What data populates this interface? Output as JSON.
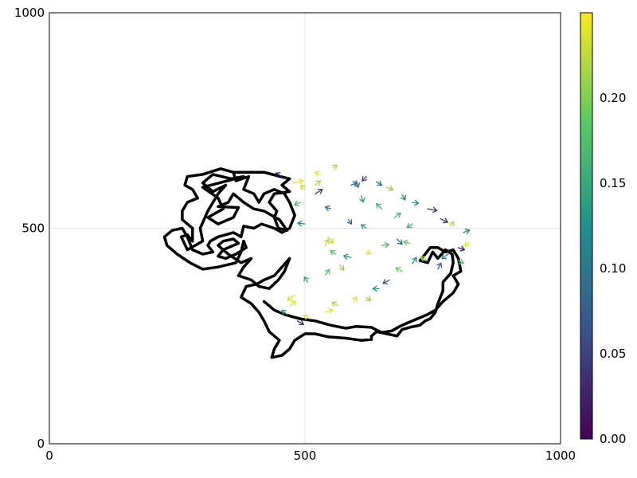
{
  "chart_data": {
    "type": "quiver",
    "title": "",
    "xlabel": "",
    "ylabel": "",
    "xlim": [
      0,
      1000
    ],
    "ylim": [
      0,
      1000
    ],
    "x_ticks": [
      "0",
      "500",
      "1000"
    ],
    "y_ticks": [
      "0",
      "500",
      "1000"
    ],
    "grid": true,
    "colorbar": {
      "range": [
        0,
        0.25
      ],
      "ticks": [
        "0.00",
        "0.05",
        "0.10",
        "0.15",
        "0.20"
      ],
      "tick_values": [
        0,
        0.05,
        0.1,
        0.15,
        0.2
      ],
      "colormap": "viridis",
      "colors": [
        "#440154",
        "#3b528b",
        "#21918c",
        "#5ec962",
        "#fde725"
      ]
    },
    "trajectory_color": "#000000",
    "trajectory": [
      [
        360,
        630
      ],
      [
        420,
        630
      ],
      [
        445,
        622
      ],
      [
        470,
        615
      ],
      [
        455,
        600
      ],
      [
        470,
        585
      ],
      [
        440,
        580
      ],
      [
        430,
        560
      ],
      [
        445,
        540
      ],
      [
        440,
        525
      ],
      [
        448,
        500
      ],
      [
        465,
        495
      ],
      [
        450,
        520
      ],
      [
        420,
        540
      ],
      [
        400,
        545
      ],
      [
        380,
        560
      ],
      [
        360,
        580
      ],
      [
        350,
        560
      ],
      [
        330,
        550
      ],
      [
        370,
        548
      ],
      [
        360,
        525
      ],
      [
        330,
        510
      ],
      [
        310,
        525
      ],
      [
        340,
        545
      ],
      [
        330,
        570
      ],
      [
        300,
        595
      ],
      [
        380,
        620
      ],
      [
        355,
        615
      ],
      [
        320,
        625
      ],
      [
        300,
        605
      ],
      [
        320,
        585
      ],
      [
        345,
        600
      ],
      [
        330,
        580
      ],
      [
        310,
        540
      ],
      [
        295,
        500
      ],
      [
        300,
        470
      ],
      [
        285,
        460
      ],
      [
        270,
        450
      ],
      [
        258,
        480
      ],
      [
        270,
        485
      ],
      [
        280,
        470
      ],
      [
        280,
        500
      ],
      [
        260,
        520
      ],
      [
        260,
        540
      ],
      [
        270,
        560
      ],
      [
        290,
        570
      ],
      [
        280,
        590
      ],
      [
        265,
        600
      ],
      [
        270,
        620
      ],
      [
        300,
        625
      ],
      [
        335,
        638
      ],
      [
        360,
        630
      ],
      [
        365,
        610
      ],
      [
        390,
        620
      ],
      [
        380,
        590
      ],
      [
        400,
        580
      ],
      [
        410,
        560
      ],
      [
        420,
        580
      ],
      [
        440,
        590
      ],
      [
        460,
        580
      ],
      [
        470,
        560
      ],
      [
        480,
        530
      ],
      [
        470,
        500
      ],
      [
        455,
        490
      ],
      [
        440,
        500
      ],
      [
        415,
        510
      ],
      [
        400,
        500
      ],
      [
        380,
        505
      ],
      [
        375,
        480
      ],
      [
        360,
        490
      ],
      [
        330,
        480
      ],
      [
        315,
        470
      ],
      [
        310,
        460
      ],
      [
        320,
        445
      ],
      [
        300,
        440
      ],
      [
        280,
        450
      ],
      [
        270,
        480
      ],
      [
        260,
        500
      ],
      [
        240,
        495
      ],
      [
        225,
        480
      ],
      [
        230,
        460
      ],
      [
        250,
        440
      ],
      [
        275,
        420
      ],
      [
        300,
        405
      ],
      [
        330,
        410
      ],
      [
        365,
        420
      ],
      [
        375,
        445
      ],
      [
        380,
        470
      ],
      [
        385,
        455
      ],
      [
        365,
        440
      ],
      [
        345,
        430
      ],
      [
        330,
        435
      ],
      [
        340,
        450
      ],
      [
        370,
        465
      ],
      [
        360,
        475
      ],
      [
        340,
        470
      ],
      [
        330,
        460
      ],
      [
        350,
        440
      ],
      [
        375,
        420
      ],
      [
        395,
        430
      ],
      [
        380,
        410
      ],
      [
        370,
        390
      ],
      [
        395,
        380
      ],
      [
        410,
        365
      ],
      [
        430,
        360
      ],
      [
        448,
        380
      ],
      [
        460,
        400
      ],
      [
        470,
        430
      ],
      [
        455,
        410
      ],
      [
        440,
        390
      ],
      [
        420,
        380
      ],
      [
        405,
        370
      ],
      [
        385,
        365
      ],
      [
        375,
        340
      ],
      [
        395,
        325
      ],
      [
        410,
        305
      ],
      [
        420,
        285
      ],
      [
        430,
        260
      ],
      [
        450,
        240
      ],
      [
        440,
        220
      ],
      [
        435,
        200
      ],
      [
        455,
        205
      ],
      [
        470,
        220
      ],
      [
        480,
        240
      ],
      [
        500,
        255
      ],
      [
        520,
        255
      ],
      [
        545,
        248
      ],
      [
        580,
        245
      ],
      [
        610,
        240
      ],
      [
        630,
        242
      ],
      [
        630,
        250
      ],
      [
        640,
        260
      ],
      [
        660,
        255
      ],
      [
        680,
        250
      ],
      [
        690,
        265
      ],
      [
        705,
        270
      ],
      [
        725,
        275
      ],
      [
        735,
        285
      ],
      [
        745,
        290
      ],
      [
        755,
        305
      ],
      [
        760,
        325
      ],
      [
        770,
        355
      ],
      [
        770,
        375
      ],
      [
        785,
        395
      ],
      [
        790,
        420
      ],
      [
        788,
        440
      ],
      [
        775,
        450
      ],
      [
        760,
        430
      ],
      [
        750,
        445
      ],
      [
        740,
        420
      ],
      [
        725,
        425
      ],
      [
        735,
        440
      ],
      [
        745,
        455
      ],
      [
        760,
        455
      ],
      [
        775,
        445
      ],
      [
        790,
        450
      ],
      [
        800,
        430
      ],
      [
        805,
        400
      ],
      [
        790,
        390
      ],
      [
        800,
        370
      ],
      [
        790,
        350
      ],
      [
        770,
        330
      ],
      [
        755,
        310
      ],
      [
        740,
        300
      ],
      [
        720,
        290
      ],
      [
        700,
        280
      ],
      [
        685,
        272
      ],
      [
        670,
        262
      ],
      [
        650,
        258
      ],
      [
        630,
        270
      ],
      [
        600,
        272
      ],
      [
        580,
        268
      ],
      [
        550,
        275
      ],
      [
        520,
        285
      ],
      [
        490,
        290
      ],
      [
        475,
        295
      ],
      [
        460,
        300
      ],
      [
        440,
        310
      ],
      [
        430,
        320
      ],
      [
        420,
        330
      ]
    ],
    "arrows": [
      [
        455,
        620,
        -12,
        8,
        0.02
      ],
      [
        478,
        605,
        18,
        6,
        0.24
      ],
      [
        500,
        590,
        -8,
        10,
        0.23
      ],
      [
        520,
        600,
        10,
        10,
        0.22
      ],
      [
        530,
        625,
        -10,
        5,
        0.24
      ],
      [
        555,
        640,
        8,
        6,
        0.22
      ],
      [
        600,
        610,
        4,
        -15,
        0.08
      ],
      [
        620,
        620,
        -8,
        -10,
        0.05
      ],
      [
        640,
        608,
        10,
        -8,
        0.09
      ],
      [
        660,
        595,
        12,
        -6,
        0.21
      ],
      [
        690,
        578,
        6,
        -12,
        0.11
      ],
      [
        710,
        560,
        12,
        -2,
        0.12
      ],
      [
        740,
        545,
        18,
        -4,
        0.04
      ],
      [
        765,
        522,
        14,
        -8,
        0.03
      ],
      [
        785,
        505,
        6,
        10,
        0.22
      ],
      [
        810,
        490,
        12,
        6,
        0.11
      ],
      [
        820,
        468,
        -6,
        -10,
        0.24
      ],
      [
        800,
        455,
        12,
        -5,
        0.02
      ],
      [
        780,
        440,
        -12,
        -10,
        0.12
      ],
      [
        740,
        425,
        -14,
        8,
        0.21
      ],
      [
        710,
        418,
        8,
        14,
        0.11
      ],
      [
        690,
        400,
        -12,
        8,
        0.19
      ],
      [
        665,
        380,
        -12,
        -8,
        0.06
      ],
      [
        645,
        360,
        -12,
        0,
        0.12
      ],
      [
        620,
        340,
        8,
        -8,
        0.21
      ],
      [
        595,
        330,
        6,
        10,
        0.24
      ],
      [
        565,
        320,
        -12,
        8,
        0.22
      ],
      [
        540,
        305,
        14,
        6,
        0.24
      ],
      [
        510,
        290,
        -12,
        8,
        0.24
      ],
      [
        485,
        285,
        12,
        -8,
        0.03
      ],
      [
        465,
        300,
        -10,
        10,
        0.14
      ],
      [
        470,
        320,
        12,
        10,
        0.24
      ],
      [
        480,
        345,
        -14,
        -12,
        0.23
      ],
      [
        505,
        375,
        -6,
        12,
        0.15
      ],
      [
        540,
        392,
        8,
        12,
        0.18
      ],
      [
        568,
        415,
        8,
        -12,
        0.21
      ],
      [
        590,
        432,
        -14,
        4,
        0.13
      ],
      [
        620,
        445,
        8,
        -4,
        0.24
      ],
      [
        650,
        460,
        14,
        2,
        0.17
      ],
      [
        680,
        475,
        10,
        -12,
        0.09
      ],
      [
        710,
        510,
        -10,
        -8,
        0.16
      ],
      [
        620,
        500,
        -10,
        8,
        0.14
      ],
      [
        585,
        520,
        6,
        -10,
        0.08
      ],
      [
        550,
        545,
        -10,
        4,
        0.09
      ],
      [
        520,
        580,
        14,
        10,
        0.05
      ],
      [
        490,
        560,
        -10,
        -6,
        0.17
      ],
      [
        500,
        510,
        -14,
        2,
        0.11
      ],
      [
        540,
        460,
        6,
        14,
        0.22
      ],
      [
        560,
        440,
        -10,
        8,
        0.18
      ],
      [
        545,
        480,
        10,
        -14,
        0.23
      ],
      [
        760,
        405,
        6,
        14,
        0.08
      ],
      [
        800,
        425,
        10,
        -6,
        0.18
      ],
      [
        705,
        465,
        -12,
        4,
        0.19
      ],
      [
        675,
        525,
        12,
        10,
        0.17
      ],
      [
        650,
        545,
        -10,
        12,
        0.16
      ],
      [
        610,
        575,
        4,
        -14,
        0.14
      ],
      [
        590,
        600,
        12,
        6,
        0.09
      ]
    ]
  }
}
